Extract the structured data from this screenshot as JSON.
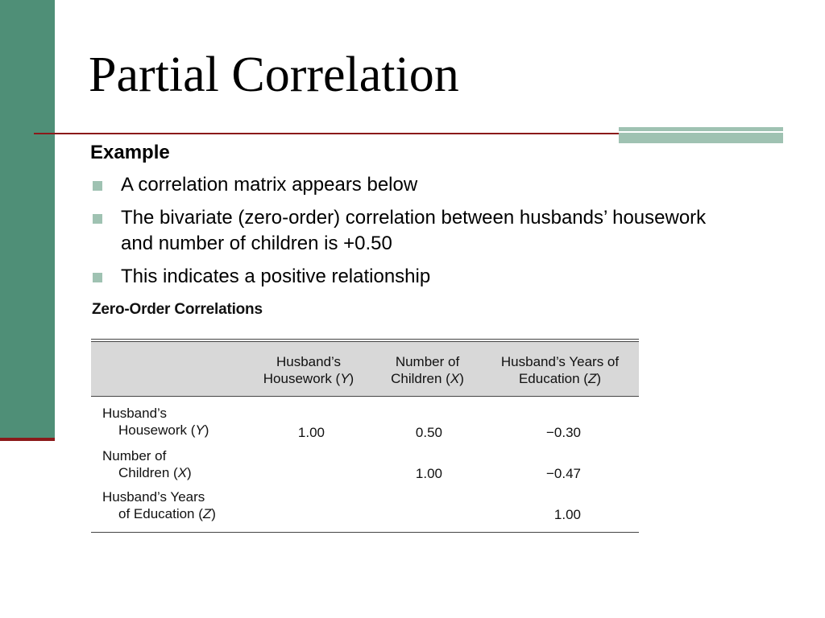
{
  "slide": {
    "title": "Partial Correlation",
    "heading": "Example",
    "bullets": [
      "A correlation matrix appears below",
      "The bivariate (zero-order) correlation between husbands’ housework and number of children is +0.50",
      "This indicates a positive relationship"
    ]
  },
  "table": {
    "title": "Zero-Order Correlations",
    "columns": [
      {
        "line1": "Husband’s",
        "line2_pre": "Housework (",
        "var": "Y",
        "line2_post": ")"
      },
      {
        "line1": "Number of",
        "line2_pre": "Children (",
        "var": "X",
        "line2_post": ")"
      },
      {
        "line1": "Husband’s Years of",
        "line2_pre": "Education (",
        "var": "Z",
        "line2_post": ")"
      }
    ],
    "rows": [
      {
        "line1": "Husband’s",
        "line2_pre": "Housework (",
        "var": "Y",
        "line2_post": ")",
        "values": [
          "1.00",
          "0.50",
          "−0.30"
        ]
      },
      {
        "line1": "Number of",
        "line2_pre": "Children (",
        "var": "X",
        "line2_post": ")",
        "values": [
          "",
          "1.00",
          "−0.47"
        ]
      },
      {
        "line1": "Husband’s Years",
        "line2_pre": "of Education (",
        "var": "Z",
        "line2_post": ")",
        "values": [
          "",
          "",
          "1.00"
        ]
      }
    ]
  },
  "colors": {
    "sidebar": "#4f8f77",
    "rule": "#8b1a1a",
    "accent": "#9fc2b2",
    "table_header_bg": "#d8d8d8"
  }
}
